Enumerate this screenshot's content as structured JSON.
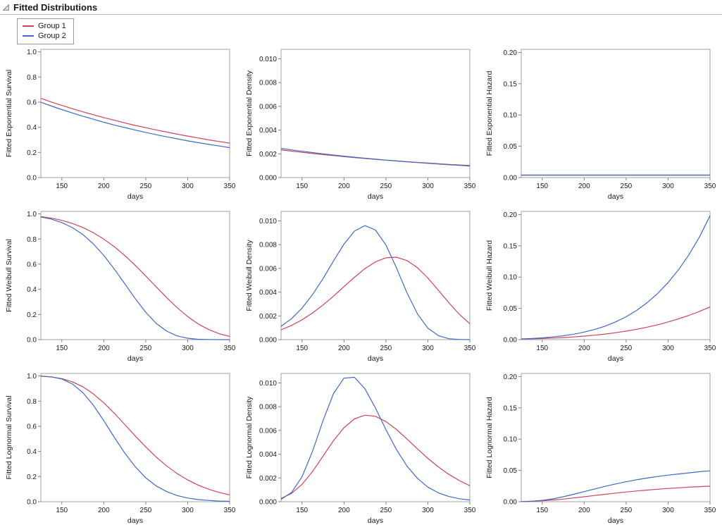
{
  "header": {
    "title": "Fitted Distributions"
  },
  "legend": {
    "items": [
      {
        "label": "Group 1",
        "color": "#cc4457"
      },
      {
        "label": "Group 2",
        "color": "#3f6ac4"
      }
    ]
  },
  "chart_data": {
    "type": "line",
    "xlabel": "days",
    "xlim": [
      125,
      350
    ],
    "xticks": [
      150,
      200,
      250,
      300,
      350
    ],
    "x": [
      125,
      137.5,
      150,
      162.5,
      175,
      187.5,
      200,
      212.5,
      225,
      237.5,
      250,
      262.5,
      275,
      287.5,
      300,
      312.5,
      325,
      337.5,
      350
    ],
    "legend_position": "top-left",
    "grid": false,
    "charts": [
      {
        "id": "exponential-survival",
        "ylabel": "Fitted Exponential Survival",
        "decimals": 1,
        "ylim": [
          0,
          1.02
        ],
        "yticks": [
          0,
          0.2,
          0.4,
          0.6,
          0.8,
          1.0
        ],
        "series": [
          {
            "name": "Group 1",
            "color": "#cc4457",
            "values": [
              0.63,
              0.601,
              0.574,
              0.548,
              0.523,
              0.5,
              0.477,
              0.456,
              0.435,
              0.415,
              0.397,
              0.379,
              0.362,
              0.345,
              0.33,
              0.315,
              0.3,
              0.287,
              0.274
            ]
          },
          {
            "name": "Group 2",
            "color": "#3f6ac4",
            "values": [
              0.599,
              0.569,
              0.541,
              0.514,
              0.488,
              0.464,
              0.44,
              0.418,
              0.398,
              0.378,
              0.359,
              0.341,
              0.324,
              0.308,
              0.292,
              0.278,
              0.264,
              0.251,
              0.238
            ]
          }
        ]
      },
      {
        "id": "exponential-density",
        "ylabel": "Fitted Exponential Density",
        "decimals": 3,
        "ylim": [
          0,
          0.0108
        ],
        "yticks": [
          0,
          0.002,
          0.004,
          0.006,
          0.008,
          0.01
        ],
        "series": [
          {
            "name": "Group 1",
            "color": "#cc4457",
            "values": [
              0.00233,
              0.002225,
              0.002124,
              0.002028,
              0.001936,
              0.001849,
              0.001765,
              0.001686,
              0.00161,
              0.001537,
              0.001467,
              0.001401,
              0.001338,
              0.001277,
              0.00122,
              0.001164,
              0.001111,
              0.001061,
              0.001013
            ]
          },
          {
            "name": "Group 2",
            "color": "#3f6ac4",
            "values": [
              0.002456,
              0.002333,
              0.002216,
              0.002106,
              0.002001,
              0.001901,
              0.001806,
              0.001715,
              0.00163,
              0.001549,
              0.001471,
              0.001398,
              0.001328,
              0.001262,
              0.001198,
              0.001139,
              0.001082,
              0.001028,
              0.000976
            ]
          }
        ]
      },
      {
        "id": "exponential-hazard",
        "ylabel": "Fitted Exponential Hazard",
        "decimals": 2,
        "ylim": [
          0,
          0.205
        ],
        "yticks": [
          0,
          0.05,
          0.1,
          0.15,
          0.2
        ],
        "series": [
          {
            "name": "Group 1",
            "color": "#cc4457",
            "values": [
              0.0037,
              0.0037,
              0.0037,
              0.0037,
              0.0037,
              0.0037,
              0.0037,
              0.0037,
              0.0037,
              0.0037,
              0.0037,
              0.0037,
              0.0037,
              0.0037,
              0.0037,
              0.0037,
              0.0037,
              0.0037,
              0.0037
            ]
          },
          {
            "name": "Group 2",
            "color": "#3f6ac4",
            "values": [
              0.0041,
              0.0041,
              0.0041,
              0.0041,
              0.0041,
              0.0041,
              0.0041,
              0.0041,
              0.0041,
              0.0041,
              0.0041,
              0.0041,
              0.0041,
              0.0041,
              0.0041,
              0.0041,
              0.0041,
              0.0041,
              0.0041
            ]
          }
        ]
      },
      {
        "id": "weibull-survival",
        "ylabel": "Fitted Weibull Survival",
        "decimals": 1,
        "ylim": [
          0,
          1.02
        ],
        "yticks": [
          0,
          0.2,
          0.4,
          0.6,
          0.8,
          1.0
        ],
        "series": [
          {
            "name": "Group 1",
            "color": "#cc4457",
            "values": [
              0.979,
              0.966,
              0.949,
              0.924,
              0.892,
              0.851,
              0.8,
              0.739,
              0.669,
              0.591,
              0.506,
              0.42,
              0.334,
              0.254,
              0.184,
              0.125,
              0.08,
              0.047,
              0.026
            ]
          },
          {
            "name": "Group 2",
            "color": "#3f6ac4",
            "values": [
              0.976,
              0.959,
              0.931,
              0.891,
              0.836,
              0.762,
              0.67,
              0.562,
              0.445,
              0.326,
              0.218,
              0.129,
              0.067,
              0.029,
              0.011,
              0.003,
              0.001,
              0,
              0
            ]
          }
        ]
      },
      {
        "id": "weibull-density",
        "ylabel": "Fitted Weibull Density",
        "decimals": 3,
        "ylim": [
          0,
          0.0108
        ],
        "yticks": [
          0,
          0.002,
          0.004,
          0.006,
          0.008,
          0.01
        ],
        "series": [
          {
            "name": "Group 1",
            "color": "#cc4457",
            "values": [
              0.00083,
              0.0012,
              0.00167,
              0.00225,
              0.00292,
              0.00366,
              0.00446,
              0.00525,
              0.00598,
              0.00655,
              0.00689,
              0.00694,
              0.00666,
              0.00606,
              0.00519,
              0.00416,
              0.00311,
              0.00213,
              0.00134
            ]
          },
          {
            "name": "Group 2",
            "color": "#3f6ac4",
            "values": [
              0.00112,
              0.00177,
              0.00265,
              0.00379,
              0.00514,
              0.00662,
              0.00804,
              0.00914,
              0.00961,
              0.00923,
              0.00797,
              0.00605,
              0.00395,
              0.00217,
              0.00096,
              0.00034,
              8e-05,
              2e-05,
              0
            ]
          }
        ]
      },
      {
        "id": "weibull-hazard",
        "ylabel": "Fitted Weibull Hazard",
        "decimals": 2,
        "ylim": [
          0,
          0.205
        ],
        "yticks": [
          0,
          0.05,
          0.1,
          0.15,
          0.2
        ],
        "series": [
          {
            "name": "Group 1",
            "color": "#cc4457",
            "values": [
              0.00085,
              0.00125,
              0.00176,
              0.00243,
              0.00327,
              0.00431,
              0.00558,
              0.00711,
              0.00893,
              0.01109,
              0.01361,
              0.01655,
              0.01993,
              0.02381,
              0.02823,
              0.03323,
              0.03888,
              0.04521,
              0.05229
            ]
          },
          {
            "name": "Group 2",
            "color": "#3f6ac4",
            "values": [
              0.00114,
              0.00184,
              0.00285,
              0.00425,
              0.00616,
              0.00869,
              0.012,
              0.01625,
              0.02162,
              0.02834,
              0.03662,
              0.04674,
              0.05897,
              0.07366,
              0.09113,
              0.11175,
              0.13598,
              0.16422,
              0.19797
            ]
          }
        ]
      },
      {
        "id": "lognormal-survival",
        "ylabel": "Fitted Lognormal Survival",
        "decimals": 1,
        "ylim": [
          0,
          1.02
        ],
        "yticks": [
          0,
          0.2,
          0.4,
          0.6,
          0.8,
          1.0
        ],
        "series": [
          {
            "name": "Group 1",
            "color": "#cc4457",
            "values": [
              0.998,
              0.992,
              0.979,
              0.954,
              0.914,
              0.858,
              0.787,
              0.704,
              0.614,
              0.523,
              0.436,
              0.355,
              0.284,
              0.223,
              0.173,
              0.132,
              0.099,
              0.074,
              0.054
            ]
          },
          {
            "name": "Group 2",
            "color": "#3f6ac4",
            "values": [
              0.999,
              0.993,
              0.976,
              0.937,
              0.868,
              0.768,
              0.645,
              0.513,
              0.387,
              0.278,
              0.19,
              0.125,
              0.08,
              0.049,
              0.029,
              0.017,
              0.01,
              0.005,
              0.003
            ]
          }
        ]
      },
      {
        "id": "lognormal-density",
        "ylabel": "Fitted Lognormal Density",
        "decimals": 3,
        "ylim": [
          0,
          0.0108
        ],
        "yticks": [
          0,
          0.002,
          0.004,
          0.006,
          0.008,
          0.01
        ],
        "series": [
          {
            "name": "Group 1",
            "color": "#cc4457",
            "values": [
              0.00027,
              0.0007,
              0.00146,
              0.00254,
              0.00384,
              0.00514,
              0.00623,
              0.00697,
              0.00729,
              0.00719,
              0.00675,
              0.00608,
              0.00529,
              0.00445,
              0.00365,
              0.00293,
              0.0023,
              0.00178,
              0.00135
            ]
          },
          {
            "name": "Group 2",
            "color": "#3f6ac4",
            "values": [
              0.0002,
              0.00078,
              0.0021,
              0.00425,
              0.00683,
              0.0091,
              0.0104,
              0.01048,
              0.00951,
              0.00789,
              0.00607,
              0.00439,
              0.00301,
              0.00197,
              0.00123,
              0.00075,
              0.00044,
              0.00025,
              0.00014
            ]
          }
        ]
      },
      {
        "id": "lognormal-hazard",
        "ylabel": "Fitted Lognormal Hazard",
        "decimals": 2,
        "ylim": [
          0,
          0.205
        ],
        "yticks": [
          0,
          0.05,
          0.1,
          0.15,
          0.2
        ],
        "series": [
          {
            "name": "Group 1",
            "color": "#cc4457",
            "values": [
              0.00027,
              0.0007,
              0.00149,
              0.00267,
              0.0042,
              0.00599,
              0.00793,
              0.00991,
              0.01187,
              0.01374,
              0.01549,
              0.01712,
              0.01859,
              0.01993,
              0.02114,
              0.02223,
              0.02321,
              0.02407,
              0.02486
            ]
          },
          {
            "name": "Group 2",
            "color": "#3f6ac4",
            "values": [
              0.0002,
              0.00078,
              0.00215,
              0.00453,
              0.00787,
              0.01185,
              0.01614,
              0.02044,
              0.02456,
              0.02839,
              0.03189,
              0.03502,
              0.03782,
              0.04029,
              0.04244,
              0.04438,
              0.04604,
              0.04793,
              0.04931
            ]
          }
        ]
      }
    ]
  }
}
